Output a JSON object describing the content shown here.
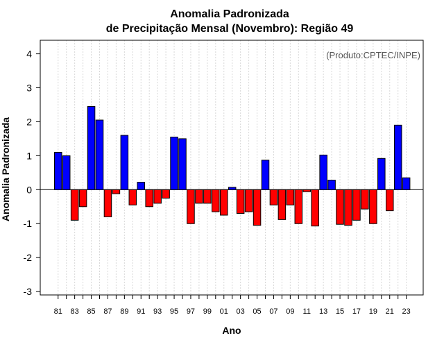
{
  "chart_data": {
    "type": "bar",
    "title": "Anomalia Padronizada",
    "subtitle": "de Precipitação Mensal (Novembro): Região 49",
    "xlabel": "Ano",
    "ylabel": "Anomalia Padronizada",
    "credit": "(Produto:CPTEC/INPE)",
    "ylim": [
      -3.1,
      4.4
    ],
    "yticks": [
      -3,
      -2,
      -1,
      0,
      1,
      2,
      3,
      4
    ],
    "grid": "vertical dotted",
    "categories": [
      "81",
      "82",
      "83",
      "84",
      "85",
      "86",
      "87",
      "88",
      "89",
      "90",
      "91",
      "92",
      "93",
      "94",
      "95",
      "96",
      "97",
      "98",
      "99",
      "00",
      "01",
      "02",
      "03",
      "04",
      "05",
      "06",
      "07",
      "08",
      "09",
      "10",
      "11",
      "12",
      "13",
      "14",
      "15",
      "16",
      "17",
      "18",
      "19",
      "20",
      "21",
      "22",
      "23"
    ],
    "tick_labels": [
      "81",
      "83",
      "85",
      "87",
      "89",
      "91",
      "93",
      "95",
      "97",
      "99",
      "01",
      "03",
      "05",
      "07",
      "09",
      "11",
      "13",
      "15",
      "17",
      "19",
      "21",
      "23"
    ],
    "values": [
      1.1,
      1.0,
      -0.9,
      -0.5,
      2.45,
      2.05,
      -0.8,
      -0.12,
      1.6,
      -0.45,
      0.22,
      -0.5,
      -0.4,
      -0.25,
      1.55,
      1.5,
      -1.0,
      -0.4,
      -0.4,
      -0.65,
      -0.75,
      0.07,
      -0.7,
      -0.65,
      -1.05,
      0.87,
      -0.45,
      -0.88,
      -0.45,
      -1.0,
      -0.06,
      -1.07,
      1.02,
      0.28,
      -1.02,
      -1.05,
      -0.9,
      -0.57,
      -1.0,
      0.92,
      -0.62,
      1.9,
      0.35
    ],
    "positive_color": "#0000ff",
    "negative_color": "#ff0000"
  }
}
